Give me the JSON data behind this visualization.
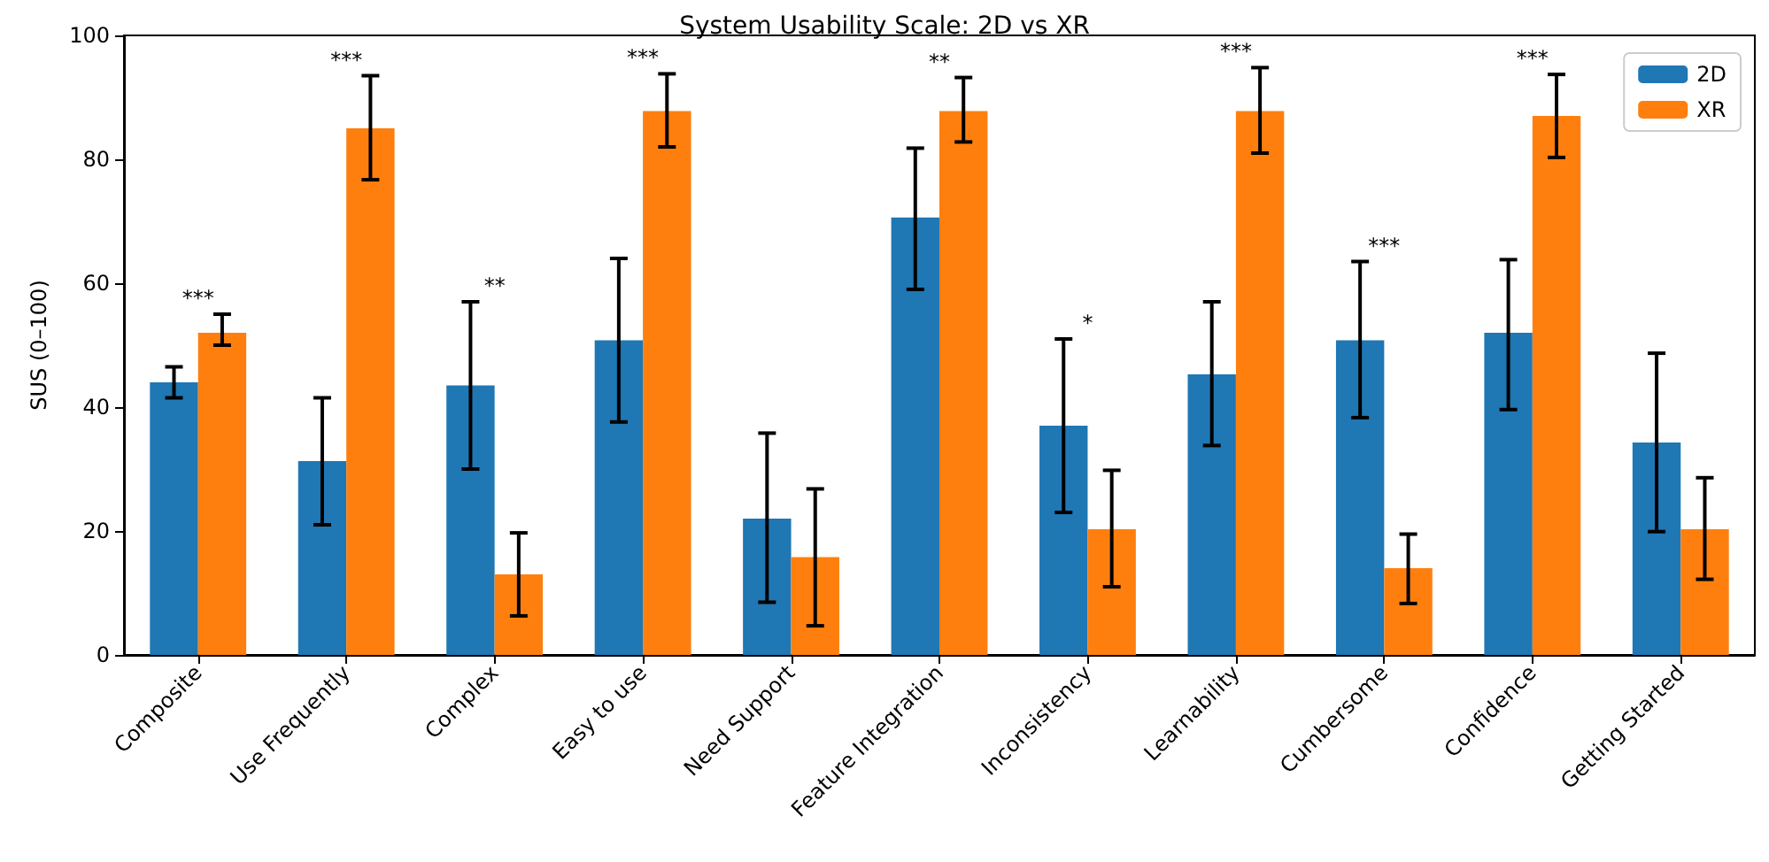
{
  "chart_data": {
    "type": "bar",
    "title": "System Usability Scale: 2D vs XR",
    "ylabel": "SUS (0–100)",
    "categories": [
      "Composite",
      "Use Frequently",
      "Complex",
      "Easy to use",
      "Need Support",
      "Feature Integration",
      "Inconsistency",
      "Learnability",
      "Cumbersome",
      "Confidence",
      "Getting Started"
    ],
    "series": [
      {
        "name": "2D",
        "color": "#1f77b4",
        "values": [
          44,
          31.3,
          43.5,
          50.8,
          22,
          70.6,
          37,
          45.3,
          50.8,
          52,
          34.3
        ],
        "errors": [
          [
            41.5,
            46.5
          ],
          [
            21,
            41.5
          ],
          [
            30,
            57
          ],
          [
            37.6,
            64
          ],
          [
            8.5,
            35.8
          ],
          [
            59,
            81.8
          ],
          [
            23,
            51
          ],
          [
            33.8,
            57
          ],
          [
            38.3,
            63.5
          ],
          [
            39.6,
            63.8
          ],
          [
            19.9,
            48.7
          ]
        ]
      },
      {
        "name": "XR",
        "color": "#ff7f0e",
        "values": [
          52,
          85,
          13,
          87.8,
          15.8,
          87.8,
          20.3,
          87.8,
          14,
          87,
          20.3
        ],
        "errors": [
          [
            50,
            55
          ],
          [
            76.7,
            93.5
          ],
          [
            6.3,
            19.7
          ],
          [
            82,
            93.8
          ],
          [
            4.7,
            26.8
          ],
          [
            82.8,
            93.2
          ],
          [
            11,
            29.8
          ],
          [
            81,
            94.8
          ],
          [
            8.3,
            19.5
          ],
          [
            80.3,
            93.7
          ],
          [
            12.2,
            28.6
          ]
        ]
      }
    ],
    "annotations": [
      "***",
      "***",
      "**",
      "***",
      "**",
      "*",
      "***",
      "***",
      "***"
    ],
    "ylim": [
      0,
      100
    ],
    "yticks": [
      0,
      20,
      40,
      60,
      80,
      100
    ],
    "grid": false,
    "legend": "top right"
  }
}
